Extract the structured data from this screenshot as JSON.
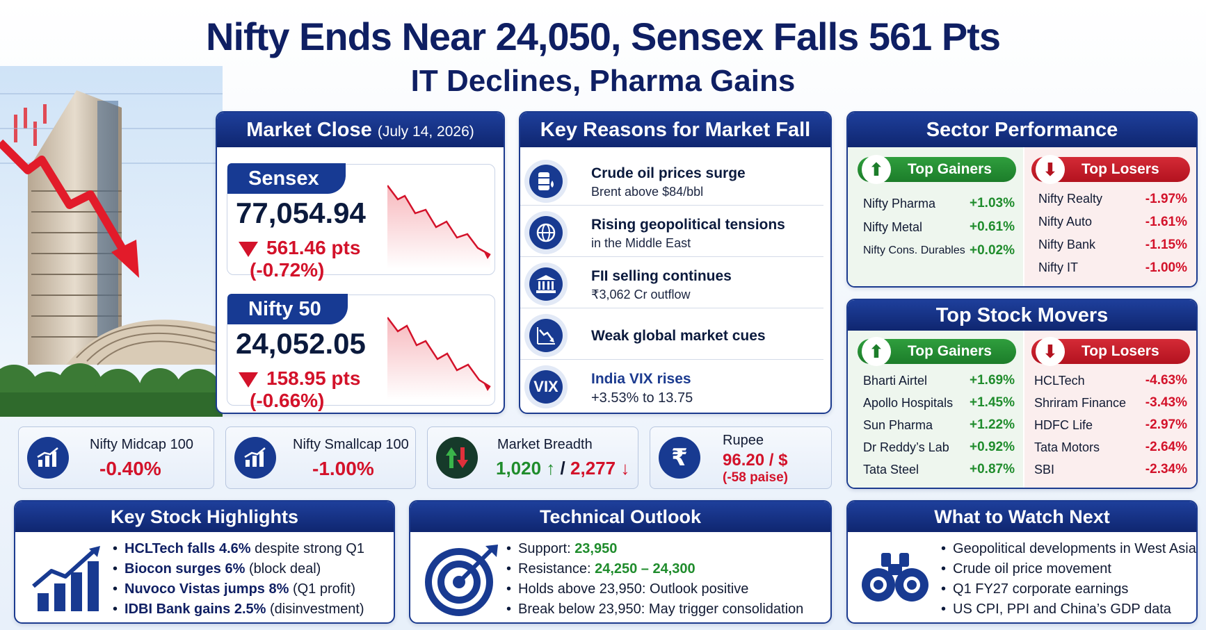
{
  "headline": {
    "line1": "Nifty Ends Near 24,050, Sensex Falls 561 Pts",
    "line2": "IT Declines, Pharma Gains"
  },
  "market_close": {
    "title": "Market Close",
    "date": "(July 14, 2026)",
    "sensex": {
      "name": "Sensex",
      "value": "77,054.94",
      "change_pts": "561.46 pts",
      "change_pct": "(-0.72%)"
    },
    "nifty": {
      "name": "Nifty 50",
      "value": "24,052.05",
      "change_pts": "158.95 pts",
      "change_pct": "(-0.66%)"
    }
  },
  "reasons": {
    "title": "Key Reasons for Market Fall",
    "items": [
      {
        "title": "Crude oil prices surge",
        "sub": "Brent above $84/bbl",
        "icon": "oil-barrel-icon"
      },
      {
        "title": "Rising geopolitical tensions",
        "sub": "in the Middle East",
        "icon": "globe-icon"
      },
      {
        "title": "FII selling continues",
        "sub": "₹3,062 Cr outflow",
        "icon": "bank-icon"
      },
      {
        "title": "Weak global market cues",
        "sub": "",
        "icon": "falling-chart-icon"
      },
      {
        "title": "India VIX rises",
        "sub": "+3.53% to 13.75",
        "icon": "vix-icon",
        "icon_text": "VIX"
      }
    ]
  },
  "sector": {
    "title": "Sector Performance",
    "gainers_label": "Top Gainers",
    "losers_label": "Top Losers",
    "gainers": [
      {
        "name": "Nifty Pharma",
        "value": "+1.03%"
      },
      {
        "name": "Nifty Metal",
        "value": "+0.61%"
      },
      {
        "name": "Nifty Cons. Durables",
        "value": "+0.02%"
      }
    ],
    "losers": [
      {
        "name": "Nifty Realty",
        "value": "-1.97%"
      },
      {
        "name": "Nifty Auto",
        "value": "-1.61%"
      },
      {
        "name": "Nifty Bank",
        "value": "-1.15%"
      },
      {
        "name": "Nifty IT",
        "value": "-1.00%"
      }
    ]
  },
  "movers": {
    "title": "Top Stock Movers",
    "gainers_label": "Top Gainers",
    "losers_label": "Top Losers",
    "gainers": [
      {
        "name": "Bharti Airtel",
        "value": "+1.69%"
      },
      {
        "name": "Apollo Hospitals",
        "value": "+1.45%"
      },
      {
        "name": "Sun Pharma",
        "value": "+1.22%"
      },
      {
        "name": "Dr Reddy’s Lab",
        "value": "+0.92%"
      },
      {
        "name": "Tata Steel",
        "value": "+0.87%"
      }
    ],
    "losers": [
      {
        "name": "HCLTech",
        "value": "-4.63%"
      },
      {
        "name": "Shriram Finance",
        "value": "-3.43%"
      },
      {
        "name": "HDFC Life",
        "value": "-2.97%"
      },
      {
        "name": "Tata Motors",
        "value": "-2.64%"
      },
      {
        "name": "SBI",
        "value": "-2.34%"
      }
    ]
  },
  "stats": {
    "midcap": {
      "label": "Nifty Midcap 100",
      "value": "-0.40%"
    },
    "smallcap": {
      "label": "Nifty Smallcap 100",
      "value": "-1.00%"
    },
    "breadth": {
      "label": "Market Breadth",
      "advances": "1,020",
      "sep": "/",
      "declines": "2,277"
    },
    "rupee": {
      "label": "Rupee",
      "value": "96.20 / $",
      "change": "(-58 paise)",
      "symbol": "₹"
    }
  },
  "highlights": {
    "title": "Key Stock Highlights",
    "items": [
      {
        "bold": "HCLTech falls 4.6%",
        "rest": " despite strong Q1"
      },
      {
        "bold": "Biocon surges 6%",
        "rest": " (block deal)"
      },
      {
        "bold": "Nuvoco Vistas jumps 8%",
        "rest": " (Q1 profit)"
      },
      {
        "bold": "IDBI Bank gains 2.5%",
        "rest": " (disinvestment)"
      }
    ]
  },
  "technical": {
    "title": "Technical Outlook",
    "support_label": "Support:",
    "support": "23,950",
    "resistance_label": "Resistance:",
    "resistance": "24,250 – 24,300",
    "holds_label": "Holds above 23,950:",
    "holds": "Outlook positive",
    "break_label": "Break below 23,950:",
    "break": "May trigger consolidation"
  },
  "watch": {
    "title": "What to Watch Next",
    "items": [
      "Geopolitical developments in West Asia",
      "Crude oil price movement",
      "Q1 FY27 corporate earnings",
      "US CPI, PPI and China’s GDP data"
    ]
  },
  "colors": {
    "navy": "#0f1f63",
    "panel_head": "#1e3f9b",
    "gain": "#1f8c2c",
    "loss": "#d3122a"
  }
}
